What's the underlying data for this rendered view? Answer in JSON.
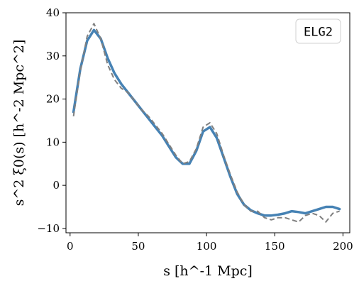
{
  "chart_data": {
    "type": "line",
    "title": "",
    "xlabel": "s [h^-1 Mpc]",
    "ylabel": "s^2 ξ0(s) [h^-2 Mpc^2]",
    "xlim": [
      -3,
      205
    ],
    "ylim": [
      -11,
      40
    ],
    "xticks": [
      0,
      50,
      100,
      150,
      200
    ],
    "yticks": [
      -10,
      0,
      10,
      20,
      30,
      40
    ],
    "grid": false,
    "legend": {
      "text": "ELG2",
      "placement": "top-right"
    },
    "colors": {
      "solid": "#4682b4",
      "dashed": "#808080"
    },
    "series": [
      {
        "style": "solid",
        "x": [
          2.5,
          7.5,
          12.5,
          17.5,
          22.5,
          27.5,
          32.5,
          37.5,
          42.5,
          47.5,
          52.5,
          57.5,
          62.5,
          67.5,
          72.5,
          77.5,
          82.5,
          87.5,
          92.5,
          97.5,
          102.5,
          107.5,
          112.5,
          117.5,
          122.5,
          127.5,
          132.5,
          137.5,
          142.5,
          147.5,
          152.5,
          157.5,
          162.5,
          167.5,
          172.5,
          177.5,
          182.5,
          187.5,
          192.5,
          197.5
        ],
        "y": [
          17.0,
          27.0,
          33.5,
          36.0,
          34.0,
          29.5,
          26.0,
          23.5,
          21.5,
          19.5,
          17.5,
          15.5,
          13.5,
          11.5,
          9.0,
          6.5,
          5.0,
          5.0,
          8.0,
          12.5,
          13.5,
          11.0,
          6.5,
          2.0,
          -2.0,
          -4.5,
          -5.8,
          -6.5,
          -7.0,
          -7.0,
          -6.8,
          -6.5,
          -6.0,
          -6.2,
          -6.5,
          -6.0,
          -5.5,
          -5.0,
          -5.0,
          -5.5
        ]
      },
      {
        "style": "dashed",
        "x": [
          2.5,
          7.5,
          12.5,
          17.5,
          22.5,
          27.5,
          32.5,
          37.5,
          42.5,
          47.5,
          52.5,
          57.5,
          62.5,
          67.5,
          72.5,
          77.5,
          82.5,
          87.5,
          92.5,
          97.5,
          102.5,
          107.5,
          112.5,
          117.5,
          122.5,
          127.5,
          132.5,
          137.5,
          142.5,
          147.5,
          152.5,
          157.5,
          162.5,
          167.5,
          172.5,
          177.5,
          182.5,
          187.5,
          192.5,
          197.5
        ],
        "y": [
          16.0,
          26.5,
          34.5,
          37.5,
          34.0,
          28.0,
          24.5,
          22.5,
          21.5,
          19.5,
          17.5,
          16.0,
          14.0,
          12.0,
          9.5,
          7.0,
          5.0,
          5.5,
          8.5,
          13.5,
          14.5,
          12.0,
          7.0,
          2.5,
          -1.5,
          -4.5,
          -6.0,
          -6.0,
          -7.5,
          -8.0,
          -7.5,
          -7.5,
          -8.0,
          -8.5,
          -7.0,
          -6.5,
          -7.0,
          -8.5,
          -6.5,
          -6.0
        ]
      }
    ]
  }
}
